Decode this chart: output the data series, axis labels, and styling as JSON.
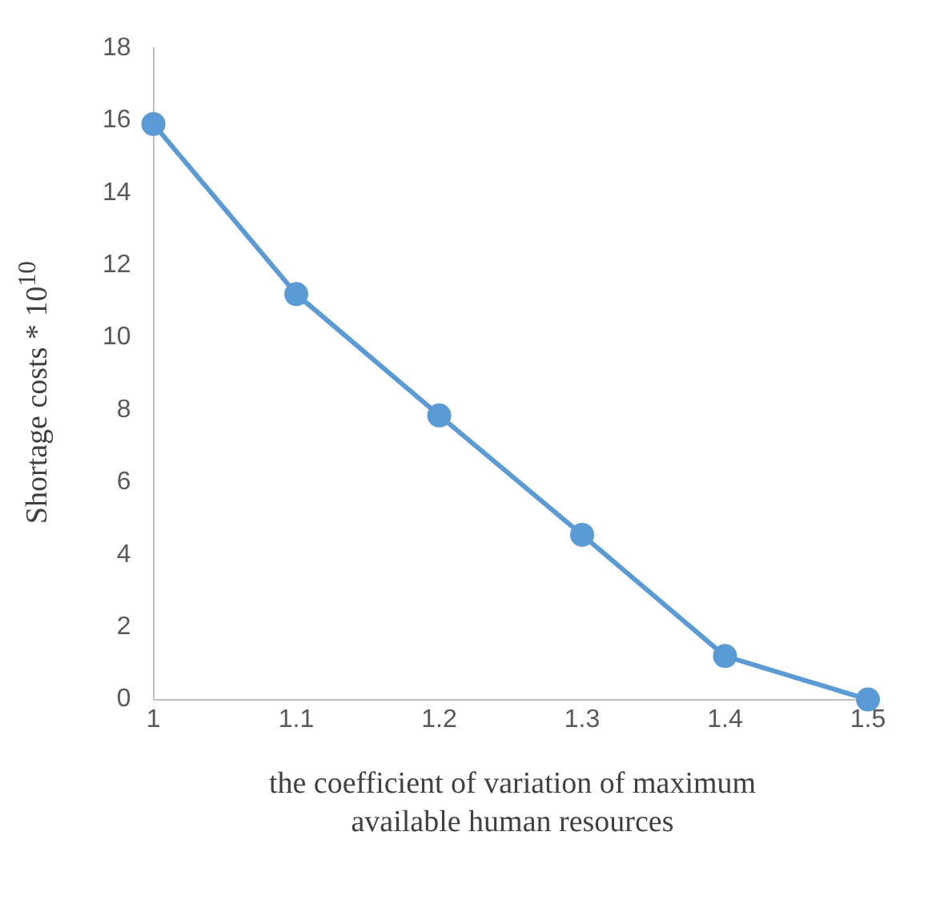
{
  "chart_data": {
    "type": "line",
    "xlabel": "the coefficient of variation of maximum available human resources",
    "ylabel": "Shortage costs * 10$^{10}$",
    "x": [
      1,
      1.1,
      1.2,
      1.3,
      1.4,
      1.5
    ],
    "series": [
      {
        "color": "#5b9bd5",
        "values": [
          15.9,
          11.2,
          7.85,
          4.55,
          1.2,
          0
        ]
      }
    ],
    "xlim": [
      1,
      1.5
    ],
    "xticks": [
      1,
      1.1,
      1.2,
      1.3,
      1.4,
      1.5
    ],
    "ylim": [
      0,
      18
    ],
    "yticks": [
      0,
      2,
      4,
      6,
      8,
      10,
      12,
      14,
      16,
      18
    ],
    "grid": false,
    "legend": false,
    "marker": "circle",
    "line_style": "solid"
  }
}
